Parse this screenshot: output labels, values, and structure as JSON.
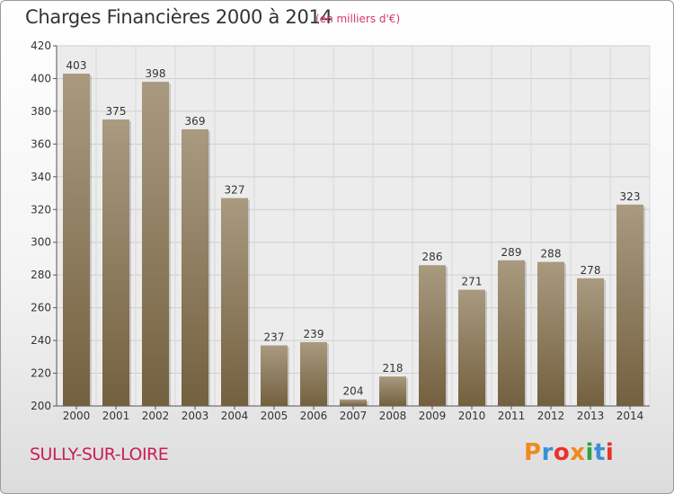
{
  "page": {
    "title": "Charges Financières 2000 à 2014",
    "unit_note": "(en milliers d'€)",
    "town": "SULLY-SUR-LOIRE",
    "logo": {
      "text": "Proxiti",
      "colors": [
        "#f08a1c",
        "#3a8fd6",
        "#e8322c",
        "#f08a1c",
        "#2ea04a",
        "#3a8fd6",
        "#e8322c"
      ]
    }
  },
  "chart_data": {
    "type": "bar",
    "title": "Charges Financières 2000 à 2014",
    "subtitle": "(en milliers d'€)",
    "xlabel": "",
    "ylabel": "",
    "categories": [
      "2000",
      "2001",
      "2002",
      "2003",
      "2004",
      "2005",
      "2006",
      "2007",
      "2008",
      "2009",
      "2010",
      "2011",
      "2012",
      "2013",
      "2014"
    ],
    "values": [
      403,
      375,
      398,
      369,
      327,
      237,
      239,
      204,
      218,
      286,
      271,
      289,
      288,
      278,
      323
    ],
    "ylim": [
      200,
      420
    ],
    "yticks": [
      200,
      220,
      240,
      260,
      280,
      300,
      320,
      340,
      360,
      380,
      400,
      420
    ],
    "grid": true,
    "bar_color": "#9a8a6e",
    "data_labels": true
  }
}
